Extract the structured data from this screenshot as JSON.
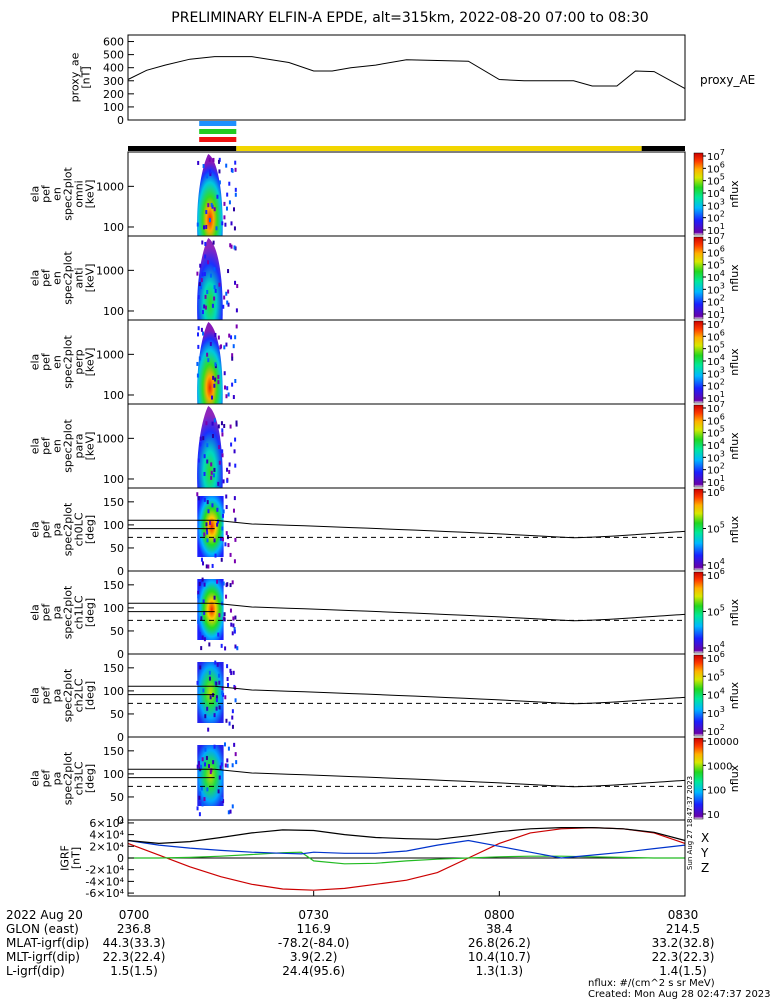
{
  "title": "PRELIMINARY ELFIN-A EPDE, alt=315km, 2022-08-20 07:00 to 08:30",
  "colors": {
    "blue_bar": "#1e90ff",
    "green_bar": "#22cc22",
    "red_bar": "#ee1111",
    "sci_zone_black": "#000000",
    "sci_zone_yellow": "#f2d600",
    "igrf_x": "#cc0000",
    "igrf_y": "#22bb22",
    "igrf_z": "#0033cc",
    "igrf_mag": "#000000"
  },
  "chart_data": [
    {
      "id": "proxy_ae",
      "type": "line",
      "ylabel": "proxy_ae [nT]",
      "right_label": "proxy_AE",
      "ylim": [
        0,
        650
      ],
      "yticks": [
        "0",
        "100",
        "200",
        "300",
        "400",
        "500",
        "600"
      ],
      "x": [
        0,
        3,
        6,
        10,
        14,
        20,
        26,
        30,
        33,
        36,
        40,
        45,
        55,
        60,
        64,
        68,
        72,
        75,
        79,
        82,
        85,
        90
      ],
      "values": [
        310,
        380,
        420,
        465,
        485,
        485,
        440,
        375,
        375,
        400,
        420,
        460,
        450,
        310,
        300,
        300,
        300,
        260,
        260,
        375,
        370,
        240
      ]
    },
    {
      "id": "en_omni",
      "type": "heatmap",
      "ylabel": "ela pef en spec2plot omni [keV]",
      "yticks": [
        "100",
        "1000"
      ],
      "log_y": true,
      "ylim_keV": [
        60,
        7000
      ],
      "colorbar_label": "nflux",
      "colorbar_ticks": [
        "10",
        "10",
        "10",
        "10",
        "10",
        "10",
        "10"
      ],
      "colorbar_exps": [
        "1",
        "2",
        "3",
        "4",
        "5",
        "6",
        "7"
      ]
    },
    {
      "id": "en_anti",
      "type": "heatmap",
      "ylabel": "ela pef en spec2plot anti [keV]",
      "yticks": [
        "100",
        "1000"
      ],
      "log_y": true,
      "colorbar_label": "nflux",
      "colorbar_ticks": [
        "10",
        "10",
        "10",
        "10",
        "10",
        "10",
        "10"
      ],
      "colorbar_exps": [
        "1",
        "2",
        "3",
        "4",
        "5",
        "6",
        "7"
      ]
    },
    {
      "id": "en_perp",
      "type": "heatmap",
      "ylabel": "ela pef en spec2plot perp [keV]",
      "yticks": [
        "100",
        "1000"
      ],
      "log_y": true,
      "colorbar_label": "nflux",
      "colorbar_ticks": [
        "10",
        "10",
        "10",
        "10",
        "10",
        "10",
        "10"
      ],
      "colorbar_exps": [
        "1",
        "2",
        "3",
        "4",
        "5",
        "6",
        "7"
      ]
    },
    {
      "id": "en_para",
      "type": "heatmap",
      "ylabel": "ela pef en spec2plot para [keV]",
      "yticks": [
        "100",
        "1000"
      ],
      "log_y": true,
      "colorbar_label": "nflux",
      "colorbar_ticks": [
        "10",
        "10",
        "10",
        "10",
        "10",
        "10",
        "10"
      ],
      "colorbar_exps": [
        "1",
        "2",
        "3",
        "4",
        "5",
        "6",
        "7"
      ]
    },
    {
      "id": "pa_ch0",
      "type": "heatmap",
      "ylabel": "ela pef pa spec2plot ch0LC [deg]",
      "yticks": [
        "0",
        "50",
        "100",
        "150"
      ],
      "ylim": [
        0,
        180
      ],
      "colorbar_label": "nflux",
      "colorbar_ticks": [
        "10",
        "10",
        "10"
      ],
      "colorbar_exps": [
        "4",
        "5",
        "6"
      ],
      "top_exp": "7"
    },
    {
      "id": "pa_ch1",
      "type": "heatmap",
      "ylabel": "ela pef pa spec2plot ch1LC [deg]",
      "yticks": [
        "0",
        "50",
        "100",
        "150"
      ],
      "ylim": [
        0,
        180
      ],
      "colorbar_label": "nflux",
      "colorbar_ticks": [
        "10",
        "10",
        "10"
      ],
      "colorbar_exps": [
        "4",
        "5",
        "6"
      ]
    },
    {
      "id": "pa_ch2",
      "type": "heatmap",
      "ylabel": "ela pef pa spec2plot ch2LC [deg]",
      "yticks": [
        "0",
        "50",
        "100",
        "150"
      ],
      "ylim": [
        0,
        180
      ],
      "colorbar_label": "nflux",
      "colorbar_ticks": [
        "10",
        "10",
        "10",
        "10",
        "10"
      ],
      "colorbar_exps": [
        "2",
        "3",
        "4",
        "5",
        "6"
      ]
    },
    {
      "id": "pa_ch3",
      "type": "heatmap",
      "ylabel": "ela pef pa spec2plot ch3LC [deg]",
      "yticks": [
        "0",
        "50",
        "100",
        "150"
      ],
      "ylim": [
        0,
        180
      ],
      "colorbar_label": "nflux",
      "colorbar_ticks": [
        "10",
        "100",
        "1000",
        "10000"
      ]
    },
    {
      "id": "igrf",
      "type": "line",
      "ylabel": "IGRF [nT]",
      "yticks": [
        "-6×10⁴",
        "-4×10⁴",
        "-2×10⁴",
        "0",
        "2×10⁴",
        "4×10⁴",
        "6×10⁴"
      ],
      "yvals": [
        -60000,
        -40000,
        -20000,
        0,
        20000,
        40000,
        60000
      ],
      "ylim": [
        -65000,
        65000
      ],
      "legend": [
        "X",
        "Y",
        "Z"
      ],
      "series": [
        {
          "color": "igrf_x",
          "x": [
            0,
            5,
            10,
            15,
            20,
            25,
            30,
            35,
            40,
            45,
            50,
            55,
            60,
            65,
            70,
            75,
            80,
            85,
            90
          ],
          "values": [
            25000,
            5000,
            -15000,
            -32000,
            -45000,
            -53000,
            -55000,
            -52000,
            -45000,
            -38000,
            -25000,
            0,
            25000,
            43000,
            50000,
            52000,
            50000,
            43000,
            25000
          ]
        },
        {
          "color": "igrf_y",
          "x": [
            0,
            5,
            10,
            15,
            20,
            25,
            28,
            30,
            35,
            40,
            45,
            50,
            55,
            60,
            65,
            70,
            75,
            80,
            85,
            90
          ],
          "values": [
            0,
            0,
            1000,
            3000,
            6000,
            9000,
            10000,
            -5000,
            -10000,
            -9000,
            -5000,
            -2000,
            0,
            2000,
            3000,
            3000,
            2000,
            1000,
            0,
            0
          ]
        },
        {
          "color": "igrf_z",
          "x": [
            0,
            5,
            10,
            15,
            20,
            25,
            28,
            30,
            35,
            40,
            45,
            50,
            55,
            60,
            65,
            70,
            75,
            80,
            85,
            90
          ],
          "values": [
            30000,
            22000,
            17000,
            13000,
            10000,
            8000,
            7000,
            10000,
            8000,
            8000,
            12000,
            22000,
            30000,
            20000,
            10000,
            0,
            5000,
            10000,
            16000,
            22000
          ]
        },
        {
          "color": "igrf_mag",
          "x": [
            0,
            5,
            10,
            15,
            20,
            25,
            30,
            35,
            40,
            45,
            50,
            55,
            60,
            65,
            70,
            75,
            80,
            85,
            90
          ],
          "values": [
            30000,
            25000,
            28000,
            35000,
            43000,
            48000,
            47000,
            40000,
            35000,
            33000,
            32000,
            38000,
            45000,
            50000,
            52000,
            52000,
            50000,
            44000,
            30000
          ]
        }
      ]
    }
  ],
  "time_axis": {
    "rows": [
      {
        "label": "2022 Aug 20",
        "values": [
          "0700",
          "0730",
          "0800",
          "0830"
        ]
      },
      {
        "label": "GLON (east)",
        "values": [
          "236.8",
          "116.9",
          "38.4",
          "214.5"
        ]
      },
      {
        "label": "MLAT-igrf(dip)",
        "values": [
          "44.3(33.3)",
          "-78.2(-84.0)",
          "26.8(26.2)",
          "33.2(32.8)"
        ]
      },
      {
        "label": "MLT-igrf(dip)",
        "values": [
          "22.3(22.4)",
          "3.9(2.2)",
          "10.4(10.7)",
          "22.3(22.3)"
        ]
      },
      {
        "label": "L-igrf(dip)",
        "values": [
          "1.5(1.5)",
          "24.4(95.6)",
          "1.3(1.3)",
          "1.4(1.5)"
        ]
      }
    ]
  },
  "footer": {
    "units": "nflux: #/(cm^2 s sr MeV)",
    "created": "Created: Mon Aug 28 02:47:37 2023",
    "side_stamp": "Sun Aug 27 18:47:37 2023"
  }
}
